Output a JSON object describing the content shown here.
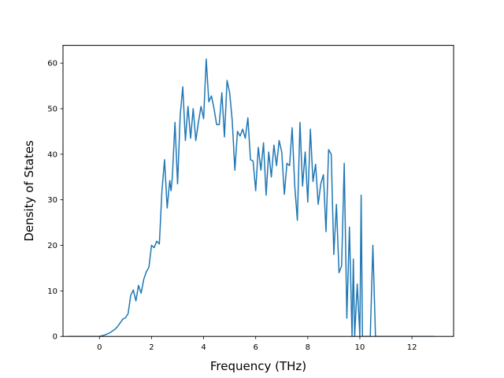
{
  "chart_data": {
    "type": "line",
    "title": "",
    "xlabel": "Frequency (THz)",
    "ylabel": "Density of States",
    "xlim": [
      -1.4,
      13.6
    ],
    "ylim": [
      0,
      63.9
    ],
    "xticks": [
      0,
      2,
      4,
      6,
      8,
      10,
      12
    ],
    "yticks": [
      0,
      10,
      20,
      30,
      40,
      50,
      60
    ],
    "xtick_labels": [
      "0",
      "2",
      "4",
      "6",
      "8",
      "10",
      "12"
    ],
    "ytick_labels": [
      "0",
      "10",
      "20",
      "30",
      "40",
      "50",
      "60"
    ],
    "grid": false,
    "legend": "none",
    "line_color": "#1f77b4",
    "series": [
      {
        "x": [
          -1.19,
          -0.3,
          0.0,
          0.2,
          0.4,
          0.6,
          0.7,
          0.8,
          0.9,
          1.0,
          1.1,
          1.2,
          1.3,
          1.4,
          1.5,
          1.6,
          1.7,
          1.8,
          1.9,
          2.0,
          2.1,
          2.2,
          2.3,
          2.4,
          2.5,
          2.6,
          2.7,
          2.75,
          2.8,
          2.9,
          3.0,
          3.1,
          3.2,
          3.3,
          3.4,
          3.5,
          3.6,
          3.7,
          3.8,
          3.9,
          4.0,
          4.1,
          4.2,
          4.3,
          4.4,
          4.5,
          4.6,
          4.7,
          4.8,
          4.9,
          5.0,
          5.1,
          5.2,
          5.3,
          5.4,
          5.5,
          5.6,
          5.7,
          5.8,
          5.9,
          6.0,
          6.1,
          6.2,
          6.3,
          6.4,
          6.5,
          6.6,
          6.7,
          6.8,
          6.9,
          7.0,
          7.1,
          7.2,
          7.3,
          7.4,
          7.5,
          7.6,
          7.7,
          7.8,
          7.9,
          8.0,
          8.1,
          8.2,
          8.3,
          8.4,
          8.5,
          8.6,
          8.7,
          8.8,
          8.9,
          9.0,
          9.1,
          9.2,
          9.3,
          9.4,
          9.5,
          9.6,
          9.7,
          9.75,
          9.8,
          9.9,
          10.0,
          10.05,
          10.1,
          10.2,
          10.3,
          10.4,
          10.5,
          10.55,
          10.6,
          10.7,
          11.0,
          12.0,
          12.85
        ],
        "values": [
          0,
          0,
          0,
          0.3,
          0.8,
          1.6,
          2.2,
          3.0,
          3.8,
          4.1,
          5.0,
          9.0,
          10.2,
          7.8,
          11.2,
          9.5,
          12.5,
          14.2,
          15.2,
          20.0,
          19.5,
          20.9,
          20.3,
          32.0,
          38.8,
          28.2,
          34.2,
          32.0,
          35.1,
          47.0,
          33.5,
          48.5,
          54.8,
          43.0,
          50.5,
          43.5,
          50.0,
          43.0,
          47.0,
          50.5,
          47.8,
          60.9,
          51.5,
          52.8,
          50.0,
          46.5,
          46.5,
          53.5,
          43.8,
          56.2,
          53.5,
          47.3,
          36.5,
          45.0,
          44.0,
          45.5,
          43.5,
          48.0,
          38.8,
          38.5,
          32.0,
          41.5,
          36.5,
          42.5,
          31.0,
          40.5,
          35.0,
          42.0,
          37.5,
          43.0,
          40.5,
          31.2,
          38.0,
          37.5,
          45.8,
          33.0,
          25.5,
          47.0,
          33.0,
          40.5,
          29.5,
          45.5,
          34.0,
          37.8,
          29.0,
          33.5,
          35.5,
          23.0,
          41.0,
          40.0,
          18.0,
          29.0,
          14.0,
          15.5,
          38.0,
          4.0,
          24.0,
          0,
          17.0,
          0,
          11.5,
          0,
          31.0,
          0,
          0,
          0,
          0,
          20.0,
          10.0,
          0,
          0,
          0,
          0,
          0
        ]
      }
    ]
  }
}
